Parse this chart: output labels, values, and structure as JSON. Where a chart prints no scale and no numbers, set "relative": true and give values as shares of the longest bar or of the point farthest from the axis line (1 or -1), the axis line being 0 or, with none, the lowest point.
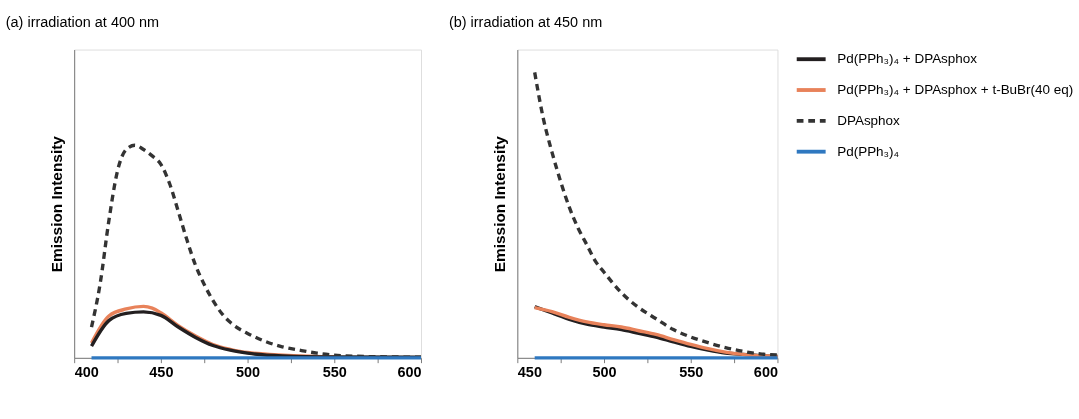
{
  "chart_data": [
    {
      "type": "line",
      "title": "(a) irradiation at 400 nm",
      "ylabel": "Emission Intensity",
      "relative": true,
      "legend": false,
      "xlim": [
        400,
        600
      ],
      "xticks": [
        400,
        {
          "value": 425,
          "label": null
        },
        450,
        {
          "value": 475,
          "label": null
        },
        500,
        {
          "value": 525,
          "label": null
        },
        550,
        {
          "value": 575,
          "label": null
        },
        600
      ],
      "series": [
        {
          "color": "#e8825a",
          "line_style": "solid",
          "x": [
            410,
            420,
            430,
            440,
            445,
            450,
            460,
            470,
            480,
            490,
            500,
            550
          ],
          "values": [
            0.07,
            0.197,
            0.23,
            0.242,
            0.234,
            0.212,
            0.152,
            0.103,
            0.063,
            0.04,
            0.025,
            0.004
          ]
        },
        {
          "color": "#231f20",
          "line_style": "solid",
          "x": [
            410,
            420,
            430,
            440,
            450,
            460,
            470,
            480,
            490,
            500,
            520,
            550,
            600
          ],
          "values": [
            0.055,
            0.175,
            0.209,
            0.216,
            0.2,
            0.145,
            0.096,
            0.058,
            0.036,
            0.022,
            0.009,
            0.004,
            0.003
          ]
        },
        {
          "color": "#333333",
          "line_style": "dashed",
          "x": [
            410,
            415,
            420,
            425,
            430,
            435,
            440,
            445,
            450,
            455,
            460,
            465,
            470,
            475,
            480,
            485,
            490,
            495,
            500,
            510,
            520,
            530,
            540,
            550,
            570,
            600
          ],
          "values": [
            0.145,
            0.35,
            0.645,
            0.88,
            0.98,
            1.0,
            0.98,
            0.95,
            0.91,
            0.82,
            0.69,
            0.555,
            0.435,
            0.345,
            0.27,
            0.21,
            0.167,
            0.137,
            0.115,
            0.078,
            0.052,
            0.036,
            0.022,
            0.013,
            0.006,
            0.003
          ]
        },
        {
          "color": "#2f78c0",
          "line_style": "solid",
          "x": [
            410,
            450,
            500,
            550,
            600
          ],
          "values": [
            0,
            0,
            0,
            0,
            0
          ]
        }
      ]
    },
    {
      "type": "line",
      "title": "(b) irradiation at 450 nm",
      "ylabel": "Emission Intensity",
      "relative": true,
      "legend": "top right",
      "xlim": [
        450,
        600
      ],
      "xticks": [
        450,
        {
          "value": 475,
          "label": null
        },
        500,
        {
          "value": 525,
          "label": null
        },
        550,
        {
          "value": 575,
          "label": null
        },
        600
      ],
      "series": [
        {
          "name": "Pd(PPh₃)₄ + DPAsphox",
          "color": "#231f20",
          "line_style": "solid",
          "x": [
            460,
            470,
            480,
            490,
            500,
            510,
            520,
            530,
            540,
            550,
            560,
            570,
            580,
            600
          ],
          "values": [
            0.179,
            0.157,
            0.135,
            0.118,
            0.108,
            0.099,
            0.086,
            0.073,
            0.056,
            0.04,
            0.027,
            0.017,
            0.012,
            0.005
          ]
        },
        {
          "name": "Pd(PPh₃)₄ + DPAsphox + t-BuBr(40 eq)",
          "color": "#e8825a",
          "line_style": "solid",
          "x": [
            460,
            470,
            480,
            490,
            500,
            510,
            520,
            530,
            540,
            550,
            560,
            570,
            580,
            600
          ],
          "values": [
            0.176,
            0.162,
            0.142,
            0.126,
            0.116,
            0.108,
            0.095,
            0.082,
            0.064,
            0.047,
            0.032,
            0.02,
            0.012,
            0.005
          ]
        },
        {
          "name": "DPAsphox",
          "color": "#333333",
          "line_style": "dashed",
          "x": [
            460,
            465,
            470,
            475,
            480,
            485,
            490,
            495,
            500,
            510,
            520,
            530,
            540,
            550,
            560,
            570,
            580,
            590,
            600
          ],
          "values": [
            1.0,
            0.838,
            0.72,
            0.617,
            0.527,
            0.455,
            0.397,
            0.339,
            0.3,
            0.228,
            0.176,
            0.137,
            0.099,
            0.073,
            0.053,
            0.036,
            0.023,
            0.014,
            0.01
          ]
        },
        {
          "name": "Pd(PPh₃)₄",
          "color": "#2f78c0",
          "line_style": "solid",
          "x": [
            460,
            500,
            550,
            600
          ],
          "values": [
            0,
            0,
            0,
            0
          ]
        }
      ]
    }
  ]
}
